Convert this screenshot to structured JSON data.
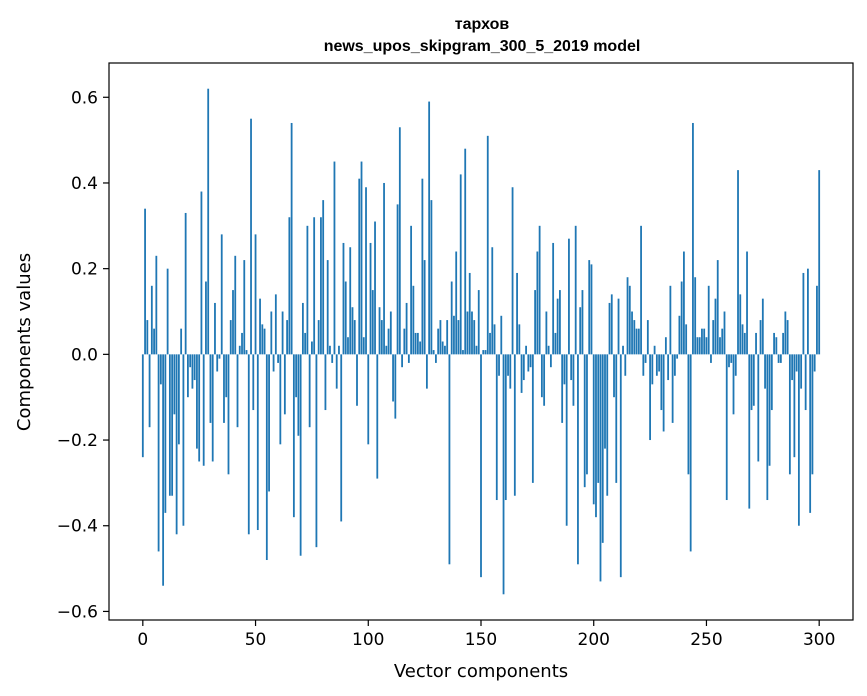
{
  "chart_data": {
    "type": "bar",
    "title_line1": "тархов",
    "title_line2": "news_upos_skipgram_300_5_2019 model",
    "xlabel": "Vector components",
    "ylabel": "Components values",
    "xlim": [
      -15,
      315
    ],
    "ylim": [
      -0.62,
      0.68
    ],
    "xticks": [
      0,
      50,
      100,
      150,
      200,
      250,
      300
    ],
    "yticks": [
      -0.6,
      -0.4,
      -0.2,
      0.0,
      0.2,
      0.4,
      0.6
    ],
    "xtick_labels": [
      "0",
      "50",
      "100",
      "150",
      "200",
      "250",
      "300"
    ],
    "ytick_labels": [
      "−0.6",
      "−0.4",
      "−0.2",
      "0.0",
      "0.2",
      "0.4",
      "0.6"
    ],
    "bar_color": "#1f77b4",
    "grid": false,
    "values": [
      -0.24,
      0.34,
      0.08,
      -0.17,
      0.16,
      0.06,
      0.23,
      -0.46,
      -0.07,
      -0.54,
      -0.37,
      0.2,
      -0.33,
      -0.33,
      -0.14,
      -0.42,
      -0.21,
      0.06,
      -0.4,
      0.33,
      -0.1,
      -0.03,
      -0.08,
      -0.06,
      -0.22,
      -0.25,
      0.38,
      -0.26,
      0.17,
      0.62,
      -0.16,
      -0.25,
      0.12,
      -0.04,
      -0.01,
      0.28,
      -0.16,
      -0.1,
      -0.28,
      0.08,
      0.15,
      0.23,
      -0.17,
      0.02,
      0.05,
      0.22,
      0.01,
      -0.42,
      0.55,
      -0.13,
      0.28,
      -0.41,
      0.13,
      0.07,
      0.06,
      -0.48,
      -0.32,
      0.1,
      -0.04,
      0.14,
      -0.02,
      -0.21,
      0.1,
      -0.14,
      0.08,
      0.32,
      0.54,
      -0.38,
      -0.1,
      -0.19,
      -0.47,
      0.12,
      0.05,
      0.3,
      -0.17,
      0.03,
      0.32,
      -0.45,
      0.08,
      0.32,
      0.36,
      -0.13,
      0.22,
      0.02,
      -0.02,
      0.45,
      -0.08,
      0.02,
      -0.39,
      0.26,
      0.17,
      0.04,
      0.25,
      0.11,
      0.08,
      -0.12,
      0.41,
      0.45,
      0.04,
      0.39,
      -0.21,
      0.26,
      0.15,
      0.31,
      -0.29,
      0.11,
      0.08,
      0.4,
      0.02,
      0.06,
      0.1,
      -0.11,
      -0.15,
      0.35,
      0.53,
      -0.03,
      0.06,
      0.12,
      -0.02,
      0.3,
      0.16,
      0.05,
      0.05,
      0.03,
      0.41,
      0.22,
      -0.08,
      0.59,
      0.36,
      0.01,
      -0.02,
      0.06,
      0.08,
      0.03,
      0.02,
      0.08,
      -0.49,
      0.17,
      0.09,
      0.24,
      0.08,
      0.42,
      0.01,
      0.48,
      0.1,
      0.19,
      0.1,
      0.08,
      0.02,
      0.15,
      -0.52,
      0.01,
      0.01,
      0.51,
      0.05,
      0.25,
      0.07,
      -0.34,
      -0.05,
      0.09,
      -0.56,
      -0.34,
      -0.05,
      -0.08,
      0.39,
      -0.33,
      0.19,
      0.07,
      -0.09,
      -0.06,
      0.02,
      -0.04,
      -0.03,
      -0.3,
      0.15,
      0.24,
      0.3,
      -0.1,
      -0.12,
      0.1,
      0.02,
      -0.03,
      0.26,
      0.05,
      0.13,
      0.15,
      -0.16,
      -0.07,
      -0.4,
      0.27,
      -0.06,
      -0.12,
      0.3,
      -0.49,
      0.11,
      0.15,
      -0.31,
      -0.28,
      0.22,
      0.21,
      -0.35,
      -0.38,
      -0.3,
      -0.53,
      -0.44,
      -0.22,
      -0.33,
      0.12,
      0.14,
      -0.1,
      -0.3,
      0.13,
      -0.52,
      0.02,
      -0.05,
      0.18,
      0.16,
      0.1,
      0.08,
      0.06,
      0.06,
      0.3,
      -0.05,
      -0.02,
      0.08,
      -0.2,
      -0.07,
      0.02,
      -0.05,
      -0.04,
      -0.13,
      -0.18,
      0.04,
      -0.06,
      0.16,
      -0.16,
      -0.05,
      -0.01,
      0.09,
      0.17,
      0.24,
      0.07,
      -0.28,
      -0.46,
      0.54,
      0.18,
      0.04,
      0.04,
      0.06,
      0.06,
      0.04,
      0.16,
      -0.02,
      0.08,
      0.13,
      0.22,
      0.04,
      0.06,
      0.1,
      -0.34,
      -0.03,
      -0.02,
      -0.14,
      -0.05,
      0.43,
      0.14,
      0.07,
      0.05,
      0.24,
      -0.36,
      -0.13,
      -0.12,
      0.05,
      -0.25,
      0.08,
      0.13,
      -0.08,
      -0.34,
      -0.26,
      -0.13,
      0.05,
      0.04,
      -0.02,
      -0.02,
      0.05,
      0.1,
      0.08,
      -0.28,
      -0.06,
      -0.24,
      -0.04,
      -0.4,
      -0.08,
      0.19,
      -0.13,
      0.2,
      -0.37,
      -0.28,
      -0.04,
      0.16,
      0.43
    ]
  }
}
